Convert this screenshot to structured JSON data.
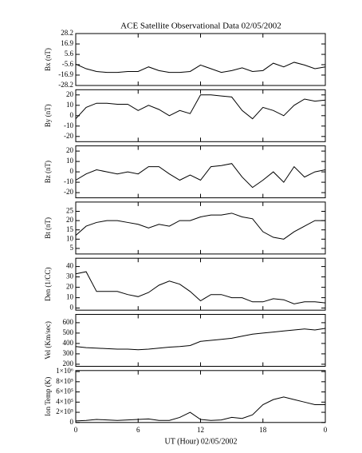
{
  "title": "ACE Satellite Observational Data   02/05/2002",
  "x_label": "UT (Hour)   02/05/2002",
  "chart_data": [
    {
      "type": "line",
      "y_label": "Bx (nT)",
      "color": "#000000",
      "x": [
        0,
        1,
        2,
        3,
        4,
        5,
        6,
        7,
        8,
        9,
        10,
        11,
        12,
        13,
        14,
        15,
        16,
        17,
        18,
        19,
        20,
        21,
        22,
        23,
        24
      ],
      "values": [
        -5,
        -10,
        -13,
        -14,
        -14,
        -13,
        -13,
        -8,
        -12,
        -14,
        -14,
        -13,
        -6,
        -10,
        -14,
        -12,
        -9,
        -13,
        -12,
        -4,
        -8,
        -3,
        -6,
        -10,
        -8
      ],
      "xlim": [
        0,
        24
      ],
      "ylim": [
        -28.2,
        28.2
      ],
      "yticks": [
        28.2,
        16.9,
        5.6,
        -5.6,
        -16.9,
        -28.2
      ]
    },
    {
      "type": "line",
      "y_label": "By (nT)",
      "color": "#000000",
      "x": [
        0,
        1,
        2,
        3,
        4,
        5,
        6,
        7,
        8,
        9,
        10,
        11,
        12,
        13,
        14,
        15,
        16,
        17,
        18,
        19,
        20,
        21,
        22,
        23,
        24
      ],
      "values": [
        -3,
        8,
        12,
        12,
        11,
        11,
        5,
        10,
        6,
        0,
        5,
        2,
        20,
        20,
        19,
        18,
        5,
        -3,
        8,
        5,
        0,
        10,
        16,
        14,
        15
      ],
      "xlim": [
        0,
        24
      ],
      "ylim": [
        -25,
        25
      ],
      "yticks": [
        20,
        10,
        0,
        -10,
        -20
      ]
    },
    {
      "type": "line",
      "y_label": "Bz (nT)",
      "color": "#000000",
      "x": [
        0,
        1,
        2,
        3,
        4,
        5,
        6,
        7,
        8,
        9,
        10,
        11,
        12,
        13,
        14,
        15,
        16,
        17,
        18,
        19,
        20,
        21,
        22,
        23,
        24
      ],
      "values": [
        -8,
        -2,
        2,
        0,
        -2,
        0,
        -2,
        5,
        5,
        -2,
        -8,
        -3,
        -8,
        5,
        6,
        8,
        -5,
        -15,
        -8,
        0,
        -10,
        5,
        -5,
        0,
        2
      ],
      "xlim": [
        0,
        24
      ],
      "ylim": [
        -25,
        25
      ],
      "yticks": [
        20,
        10,
        0,
        -10,
        -20
      ]
    },
    {
      "type": "line",
      "y_label": "Bt (nT)",
      "color": "#000000",
      "x": [
        0,
        1,
        2,
        3,
        4,
        5,
        6,
        7,
        8,
        9,
        10,
        11,
        12,
        13,
        14,
        15,
        16,
        17,
        18,
        19,
        20,
        21,
        22,
        23,
        24
      ],
      "values": [
        12,
        17,
        19,
        20,
        20,
        19,
        18,
        16,
        18,
        17,
        20,
        20,
        22,
        23,
        23,
        24,
        22,
        21,
        14,
        11,
        10,
        14,
        17,
        20,
        20
      ],
      "xlim": [
        0,
        24
      ],
      "ylim": [
        2,
        30
      ],
      "yticks": [
        25,
        20,
        15,
        10,
        5
      ]
    },
    {
      "type": "line",
      "y_label": "Den (1/CC)",
      "color": "#000000",
      "x": [
        0,
        1,
        2,
        3,
        4,
        5,
        6,
        7,
        8,
        9,
        10,
        11,
        12,
        13,
        14,
        15,
        16,
        17,
        18,
        19,
        20,
        21,
        22,
        23,
        24
      ],
      "values": [
        33,
        35,
        16,
        16,
        16,
        13,
        11,
        15,
        22,
        26,
        23,
        16,
        7,
        13,
        13,
        10,
        10,
        6,
        6,
        9,
        8,
        4,
        6,
        6,
        5
      ],
      "xlim": [
        0,
        24
      ],
      "ylim": [
        -2,
        48
      ],
      "yticks": [
        40,
        30,
        20,
        10,
        0
      ]
    },
    {
      "type": "line",
      "y_label": "Vel (Km/sec)",
      "color": "#000000",
      "x": [
        0,
        1,
        2,
        3,
        4,
        5,
        6,
        7,
        8,
        9,
        10,
        11,
        12,
        13,
        14,
        15,
        16,
        17,
        18,
        19,
        20,
        21,
        22,
        23,
        24
      ],
      "values": [
        370,
        360,
        355,
        350,
        345,
        345,
        340,
        345,
        355,
        365,
        370,
        380,
        420,
        430,
        440,
        450,
        470,
        490,
        500,
        510,
        520,
        530,
        540,
        530,
        545
      ],
      "xlim": [
        0,
        24
      ],
      "ylim": [
        180,
        680
      ],
      "yticks": [
        600,
        500,
        400,
        300,
        200
      ]
    },
    {
      "type": "line",
      "y_label": "Ion Temp (K)",
      "color": "#000000",
      "x": [
        0,
        1,
        2,
        3,
        4,
        5,
        6,
        7,
        8,
        9,
        10,
        11,
        12,
        13,
        14,
        15,
        16,
        17,
        18,
        19,
        20,
        21,
        22,
        23,
        24
      ],
      "values": [
        30000,
        40000,
        60000,
        50000,
        40000,
        50000,
        60000,
        70000,
        40000,
        40000,
        100000,
        200000,
        60000,
        40000,
        50000,
        100000,
        80000,
        150000,
        350000,
        450000,
        500000,
        450000,
        400000,
        350000,
        350000
      ],
      "xlim": [
        0,
        24
      ],
      "ylim": [
        0,
        1020000
      ],
      "yticks": [
        {
          "value": 1000000,
          "label": "1×10⁶"
        },
        {
          "value": 800000,
          "label": "8×10⁵"
        },
        {
          "value": 600000,
          "label": "6×10⁵"
        },
        {
          "value": 400000,
          "label": "4×10⁵"
        },
        {
          "value": 200000,
          "label": "2×10⁵"
        },
        0
      ],
      "xticks": [
        0,
        6,
        12,
        18,
        {
          "value": 24,
          "label": "0"
        }
      ]
    }
  ]
}
